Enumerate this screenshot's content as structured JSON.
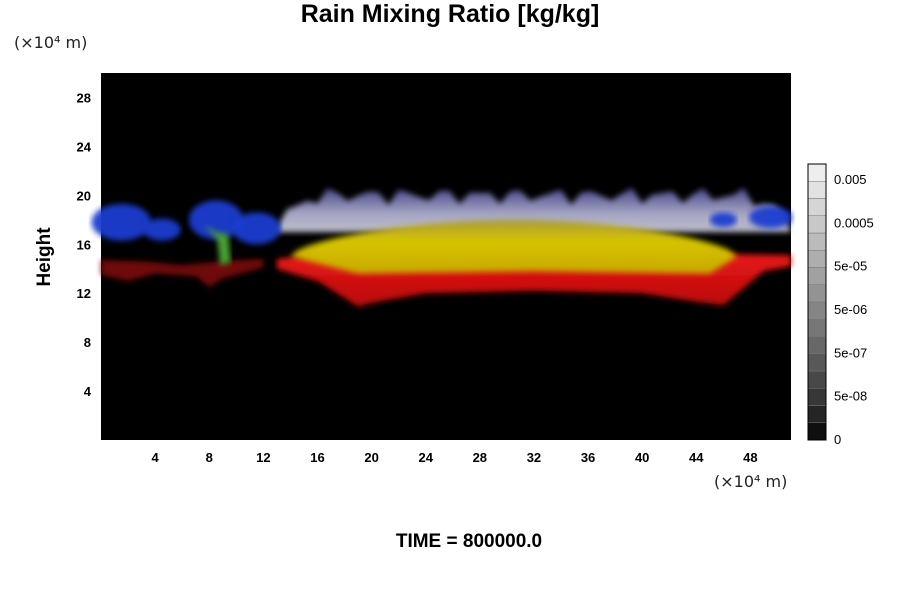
{
  "chart_data": {
    "type": "heatmap",
    "title": "Rain Mixing Ratio [kg/kg]",
    "ylabel": "Height",
    "xlabel": "",
    "x_unit": "(×10⁴ m)",
    "y_unit": "(×10⁴ m)",
    "xlim": [
      0,
      51
    ],
    "ylim": [
      0,
      30
    ],
    "x_ticks": [
      "4",
      "8",
      "12",
      "16",
      "20",
      "24",
      "28",
      "32",
      "36",
      "40",
      "44",
      "48"
    ],
    "x_tick_values": [
      4,
      8,
      12,
      16,
      20,
      24,
      28,
      32,
      36,
      40,
      44,
      48
    ],
    "y_ticks": [
      "4",
      "8",
      "12",
      "16",
      "20",
      "24",
      "28"
    ],
    "y_tick_values": [
      4,
      8,
      12,
      16,
      20,
      24,
      28
    ],
    "colorbar": {
      "scale": "log",
      "ticks": [
        "0.005",
        "0.0005",
        "5e-05",
        "5e-06",
        "5e-07",
        "5e-08",
        "0"
      ],
      "tick_values": [
        0.005,
        0.0005,
        5e-05,
        5e-06,
        5e-07,
        5e-08,
        0
      ],
      "levels": 16,
      "color_low": "#000000",
      "color_high": "#f4f4f4"
    },
    "background_color": "#000000",
    "layers": [
      {
        "color": "#d41010",
        "z_approx": "low",
        "x_range": [
          13,
          51
        ],
        "base_height": [
          11,
          15
        ],
        "top_height": 15
      },
      {
        "color": "#c8c000",
        "z_approx": "mid",
        "x_range": [
          14,
          47
        ],
        "base_height": [
          13.5,
          15
        ],
        "top_height": 18
      },
      {
        "color": "#a8a8c8",
        "z_approx": "high",
        "x_range": [
          13,
          51
        ],
        "base_height": [
          17,
          18
        ],
        "top_height": 20
      },
      {
        "color": "#1c3cd0",
        "z_approx": "cirrus",
        "x_range": [
          0,
          14
        ],
        "base_height": [
          16,
          17
        ],
        "top_height": 19
      },
      {
        "color": "#4aa030",
        "z_approx": "column",
        "x_range": [
          8,
          9.5
        ],
        "base_height": [
          14.5,
          14.5
        ],
        "top_height": 17
      }
    ]
  },
  "footer": {
    "time_label": "TIME = 800000.0"
  }
}
